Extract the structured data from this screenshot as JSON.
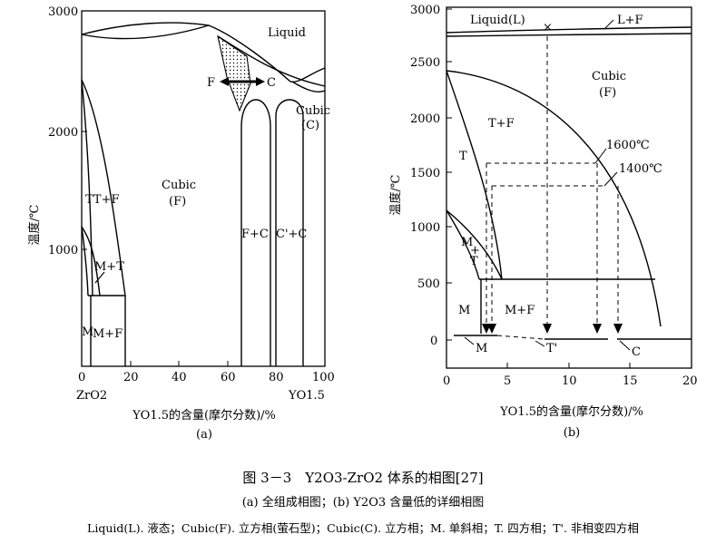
{
  "panel_a": {
    "y_ticks": [
      "3000",
      "2000",
      "1000"
    ],
    "x_ticks": [
      "0",
      "20",
      "40",
      "60",
      "80",
      "100"
    ],
    "y_axis_label": "温度/℃",
    "x_axis_label": "YO1.5的含量(摩尔分数)/%",
    "left_end": "ZrO2",
    "right_end": "YO1.5",
    "panel_label": "(a)",
    "regions": {
      "liquid": "Liquid",
      "cubic_f": "Cubic",
      "cubic_f_sub": "(F)",
      "cubic_c": "Cubic",
      "cubic_c_sub": "(C)",
      "f_label": "F",
      "c_label": "C",
      "t_plus_f": "TT+F",
      "m_plus_t": "M+T",
      "m": "M",
      "m_plus_f": "M+F",
      "f_plus_c": "F+C",
      "c_plus_c": "C'+C"
    }
  },
  "panel_b": {
    "y_ticks": [
      "3000",
      "2500",
      "2000",
      "1500",
      "1000",
      "500",
      "0"
    ],
    "x_ticks": [
      "0",
      "5",
      "10",
      "15",
      "20"
    ],
    "y_axis_label": "温度/℃",
    "x_axis_label": "YO1.5的含量(摩尔分数)/%",
    "panel_label": "(b)",
    "regions": {
      "liquid": "Liquid(L)",
      "l_plus_f": "L+F",
      "cross": "×",
      "cubic": "Cubic",
      "cubic_sub": "(F)",
      "t_plus_f": "T+F",
      "t": "T",
      "iso_1600": "1600℃",
      "iso_1400": "1400℃",
      "m_plus_t_m": "M",
      "m_plus_t_plus": "+",
      "m_plus_t_t": "T",
      "m": "M",
      "m_plus_f": "M+F",
      "m_bottom": "M",
      "t_prime": "T'",
      "c_bottom": "C"
    }
  },
  "caption": {
    "title": "图 3－3　Y2O3-ZrO2 体系的相图[27]",
    "subtitle": "(a) 全组成相图；(b) Y2O3 含量低的详细相图",
    "legend": "Liquid(L). 液态；Cubic(F). 立方相(萤石型)；Cubic(C). 立方相；M. 单斜相；T. 四方相；T'. 非相变四方相"
  }
}
